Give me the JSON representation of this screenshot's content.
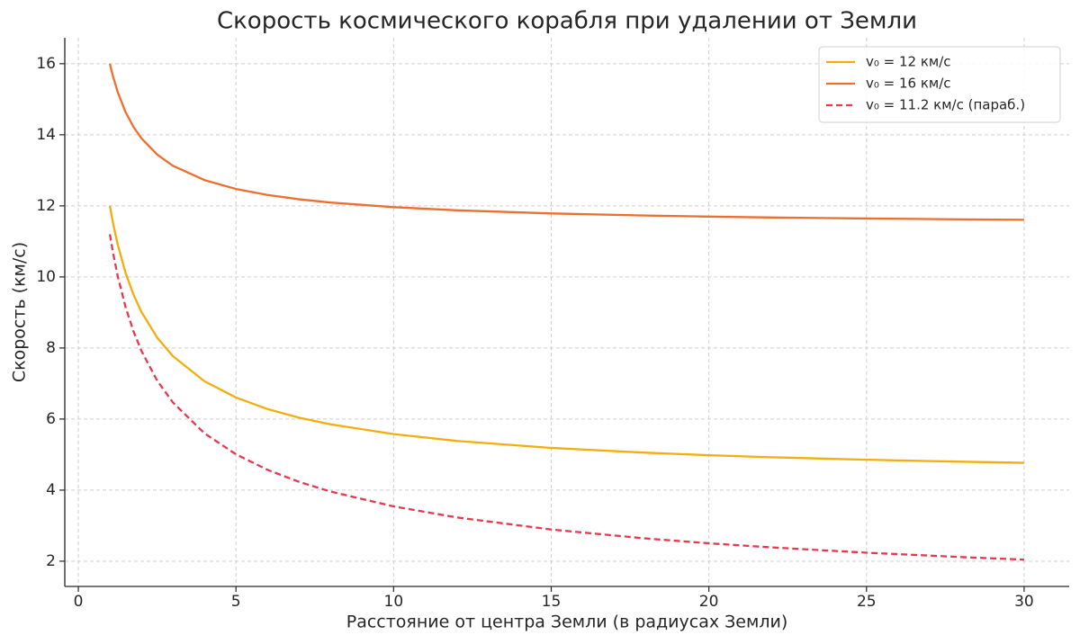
{
  "chart_data": {
    "type": "line",
    "title": "Скорость космического корабля при удалении от Земли",
    "xlabel": "Расстояние от центра Земли (в радиусах Земли)",
    "ylabel": "Скорость (км/с)",
    "x": [
      1,
      1.1,
      1.25,
      1.5,
      1.75,
      2,
      2.5,
      3,
      4,
      5,
      6,
      7,
      8,
      10,
      12,
      15,
      18,
      20,
      22,
      25,
      28,
      30
    ],
    "series": [
      {
        "name": "v₀ = 12 км/с",
        "color": "#f4ad0e",
        "linestyle": "solid",
        "values": [
          12,
          11.515,
          10.905,
          10.109,
          9.499,
          9.016,
          8.291,
          7.77,
          7.065,
          6.607,
          6.282,
          6.04,
          5.852,
          5.577,
          5.386,
          5.189,
          5.053,
          4.983,
          4.926,
          4.856,
          4.8,
          4.769
        ]
      },
      {
        "name": "v₀ = 16 км/с",
        "color": "#ec6f2f",
        "linestyle": "solid",
        "values": [
          16,
          15.64,
          15.196,
          14.635,
          14.221,
          13.903,
          13.444,
          13.129,
          12.725,
          12.476,
          12.307,
          12.185,
          12.093,
          11.963,
          11.875,
          11.787,
          11.727,
          11.698,
          11.673,
          11.644,
          11.621,
          11.608
        ]
      },
      {
        "name": "v₀ = 11.2 км/с (параб.)",
        "color": "#e8384f",
        "linestyle": "dashed",
        "values": [
          11.2,
          10.679,
          10.018,
          9.145,
          8.466,
          7.92,
          7.083,
          6.466,
          5.6,
          5.009,
          4.572,
          4.233,
          3.96,
          3.542,
          3.233,
          2.892,
          2.64,
          2.504,
          2.388,
          2.24,
          2.117,
          2.045
        ]
      }
    ],
    "xlim": [
      -0.43,
      31.43
    ],
    "xticks": [
      0,
      5,
      10,
      15,
      20,
      25,
      30
    ],
    "ylim": [
      1.29,
      16.73
    ],
    "yticks": [
      2,
      4,
      6,
      8,
      10,
      12,
      14,
      16
    ],
    "grid": true,
    "legend": "upper right"
  }
}
